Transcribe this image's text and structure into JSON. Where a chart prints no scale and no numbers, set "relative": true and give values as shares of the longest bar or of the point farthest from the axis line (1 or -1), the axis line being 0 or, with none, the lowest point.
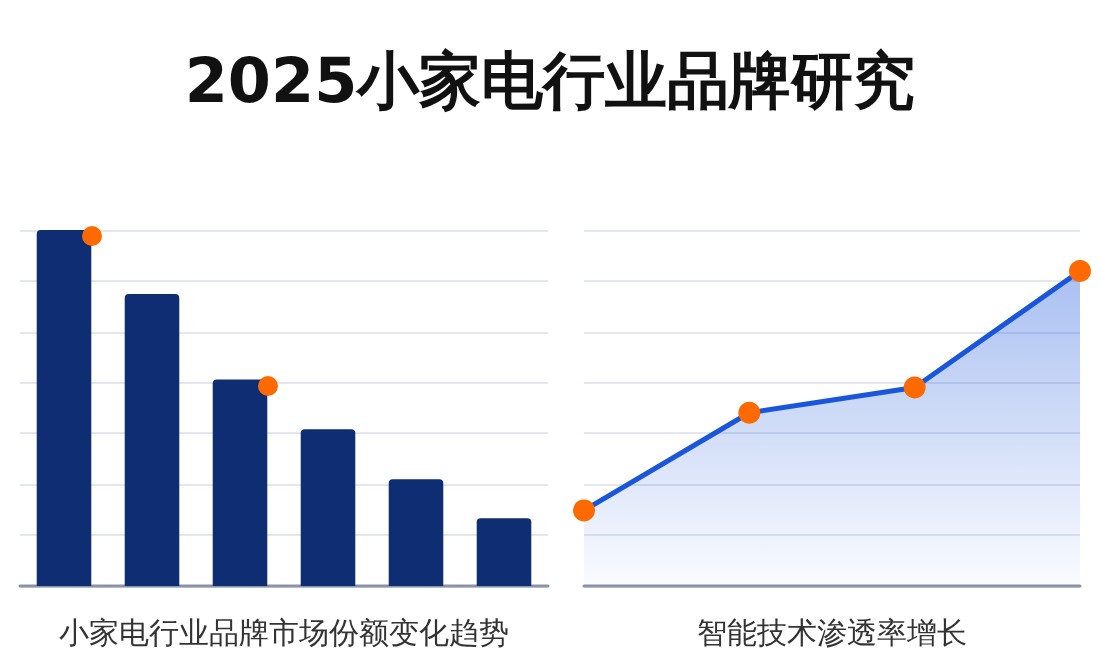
{
  "chart_data": [
    {
      "type": "bar",
      "title": "2025小家电行业品牌研究",
      "xlabel": "小家电行业品牌市场份额变化趋势",
      "relative": true,
      "categories": [
        null,
        null,
        null,
        null,
        null,
        null
      ],
      "series": [
        {
          "color": "#0f2d73",
          "values": [
            1,
            0.82,
            0.58,
            0.44,
            0.3,
            0.19
          ]
        }
      ],
      "grid": "y"
    },
    {
      "type": "area",
      "xlabel": "智能技术渗透率增长",
      "relative": true,
      "categories": [
        null,
        null,
        null,
        null
      ],
      "series": [
        {
          "color": "#1a56db",
          "values": [
            0.24,
            0.55,
            0.63,
            1
          ]
        }
      ],
      "grid": "y",
      "marker": "circle"
    }
  ]
}
